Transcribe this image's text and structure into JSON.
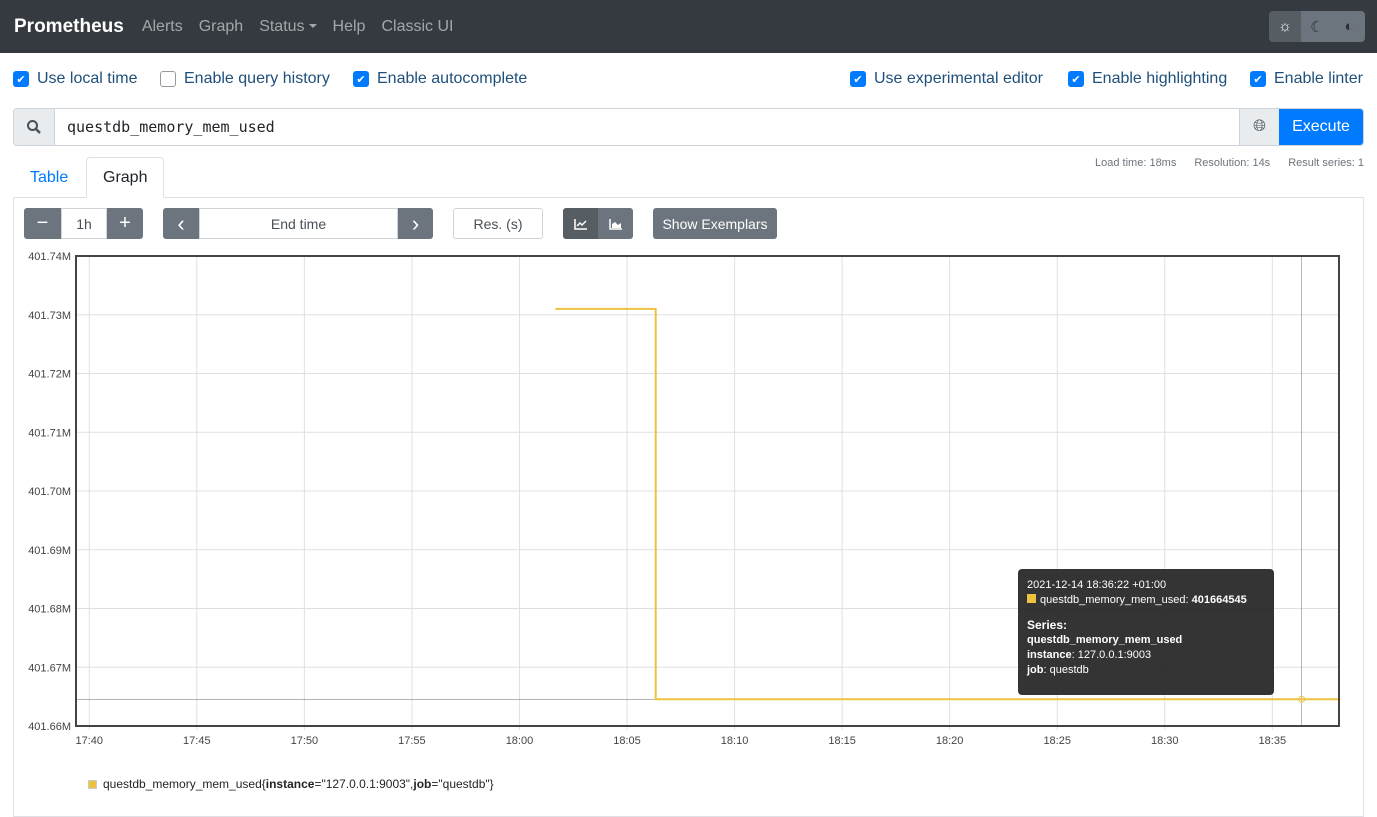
{
  "nav": {
    "brand": "Prometheus",
    "links": [
      "Alerts",
      "Graph",
      "Status",
      "Help",
      "Classic UI"
    ],
    "theme_icons": [
      "sun-icon",
      "moon-icon",
      "contrast-icon"
    ]
  },
  "options": [
    {
      "label": "Use local time",
      "checked": true
    },
    {
      "label": "Enable query history",
      "checked": false
    },
    {
      "label": "Enable autocomplete",
      "checked": true
    },
    {
      "label": "Use experimental editor",
      "checked": true
    },
    {
      "label": "Enable highlighting",
      "checked": true
    },
    {
      "label": "Enable linter",
      "checked": true
    }
  ],
  "query": {
    "value": "questdb_memory_mem_used",
    "execute": "Execute"
  },
  "stats": {
    "load": "Load time: 18ms",
    "resolution": "Resolution: 14s",
    "series": "Result series: 1"
  },
  "tabs": {
    "table": "Table",
    "graph": "Graph"
  },
  "controls": {
    "minus": "−",
    "range": "1h",
    "plus": "+",
    "prev": "‹",
    "end_time": "End time",
    "next": "›",
    "res": "Res. (s)",
    "exemplars": "Show Exemplars"
  },
  "tooltip": {
    "time": "2021-12-14 18:36:22 +01:00",
    "metric": "questdb_memory_mem_used:",
    "value": "401664545",
    "series_label": "Series:",
    "name": "questdb_memory_mem_used",
    "instance_key": "instance",
    "instance_val": ": 127.0.0.1:9003",
    "job_key": "job",
    "job_val": ": questdb"
  },
  "legend": {
    "prefix": "questdb_memory_mem_used{",
    "k1": "instance",
    "v1": "=\"127.0.0.1:9003\", ",
    "k2": "job",
    "v2": "=\"questdb\"}"
  },
  "chart_data": {
    "type": "line",
    "series": [
      {
        "name": "questdb_memory_mem_used{instance=\"127.0.0.1:9003\", job=\"questdb\"}",
        "color": "#edc240",
        "points": [
          [
            "18:01:40",
            401731000
          ],
          [
            "18:06:20",
            401731000
          ],
          [
            "18:06:20",
            401664545
          ],
          [
            "18:38:10",
            401664545
          ]
        ]
      }
    ],
    "x_ticks": [
      "17:40",
      "17:45",
      "17:50",
      "17:55",
      "18:00",
      "18:05",
      "18:10",
      "18:15",
      "18:20",
      "18:25",
      "18:30",
      "18:35"
    ],
    "y_ticks": [
      "401.74M",
      "401.73M",
      "401.72M",
      "401.71M",
      "401.70M",
      "401.69M",
      "401.68M",
      "401.67M",
      "401.66M"
    ],
    "xlim": [
      "17:39:23",
      "18:38:06"
    ],
    "ylim": [
      401660000,
      401740000
    ],
    "grid": true,
    "hover": [
      "18:36:22",
      401664545
    ]
  }
}
